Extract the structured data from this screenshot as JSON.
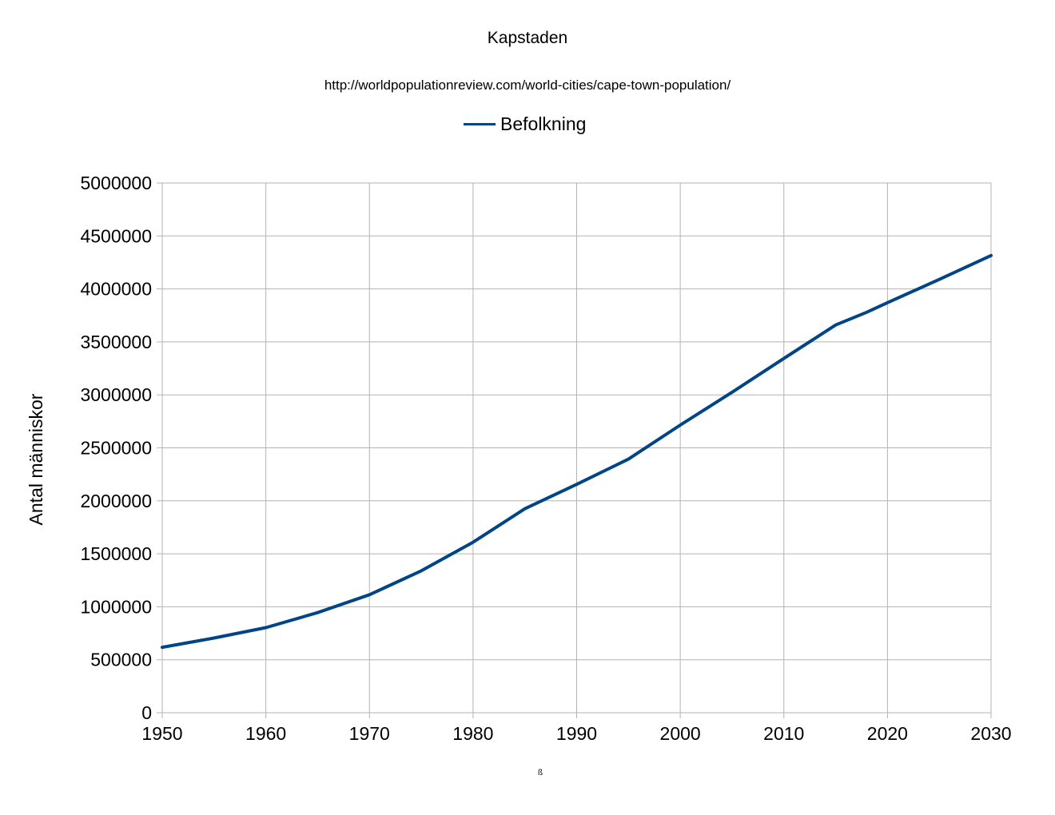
{
  "chart_data": {
    "type": "line",
    "title": "Kapstaden",
    "subtitle": "http://worldpopulationreview.com/world-cities/cape-town-population/",
    "xlabel": "ß",
    "ylabel": "Antal människor",
    "xlim": [
      1950,
      2030
    ],
    "ylim": [
      0,
      5000000
    ],
    "x_ticks": [
      1950,
      1960,
      1970,
      1980,
      1990,
      2000,
      2010,
      2020,
      2030
    ],
    "y_ticks": [
      0,
      500000,
      1000000,
      1500000,
      2000000,
      2500000,
      3000000,
      3500000,
      4000000,
      4500000,
      5000000
    ],
    "grid": true,
    "legend_position": "top-center",
    "series": [
      {
        "name": "Befolkning",
        "color": "#004586",
        "x": [
          1950,
          1955,
          1960,
          1965,
          1970,
          1975,
          1980,
          1985,
          1990,
          1995,
          2000,
          2005,
          2010,
          2015,
          2018,
          2020,
          2025,
          2030
        ],
        "y": [
          618000,
          705000,
          803000,
          945000,
          1114000,
          1339000,
          1609000,
          1925000,
          2155000,
          2394000,
          2715000,
          3025000,
          3344000,
          3660000,
          3780000,
          3870000,
          4090000,
          4315000
        ]
      }
    ]
  }
}
